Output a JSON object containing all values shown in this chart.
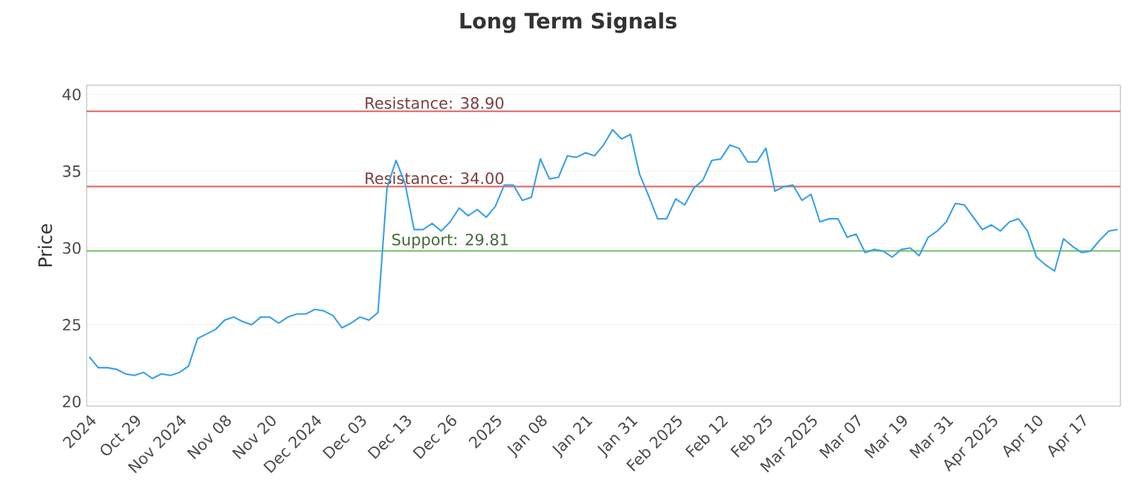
{
  "chart_data": {
    "type": "line",
    "title": "Long Term Signals",
    "ylabel": "Price",
    "categories": [
      "2024",
      null,
      null,
      null,
      null,
      "Oct 29",
      null,
      null,
      null,
      null,
      "Nov 2024",
      null,
      null,
      null,
      null,
      "Nov 08",
      null,
      null,
      null,
      null,
      "Nov 20",
      null,
      null,
      null,
      null,
      "Dec 2024",
      null,
      null,
      null,
      null,
      "Dec 03",
      null,
      null,
      null,
      null,
      "Dec 13",
      null,
      null,
      null,
      null,
      "Dec 26",
      null,
      null,
      null,
      null,
      "2025",
      null,
      null,
      null,
      null,
      "Jan 08",
      null,
      null,
      null,
      null,
      "Jan 21",
      null,
      null,
      null,
      null,
      "Jan 31",
      null,
      null,
      null,
      null,
      "Feb 2025",
      null,
      null,
      null,
      null,
      "Feb 12",
      null,
      null,
      null,
      null,
      "Feb 25",
      null,
      null,
      null,
      null,
      "Mar 2025",
      null,
      null,
      null,
      null,
      "Mar 07",
      null,
      null,
      null,
      null,
      "Mar 19",
      null,
      null,
      null,
      null,
      "Mar 31",
      null,
      null,
      null,
      null,
      "Apr 2025",
      null,
      null,
      null,
      null,
      "Apr 10",
      null,
      null,
      null,
      null,
      "Apr 17",
      null,
      null,
      null,
      null
    ],
    "series": [
      {
        "color": "#3aa0e8",
        "values": [
          22.9,
          22.2,
          22.2,
          22.1,
          21.8,
          21.7,
          21.9,
          21.5,
          21.8,
          21.7,
          21.9,
          22.3,
          24.1,
          24.4,
          24.7,
          25.3,
          25.5,
          25.2,
          25.0,
          25.5,
          25.5,
          25.1,
          25.5,
          25.7,
          25.7,
          26.0,
          25.9,
          25.6,
          24.8,
          25.1,
          25.5,
          25.3,
          25.8,
          33.9,
          35.7,
          34.2,
          31.2,
          31.2,
          31.6,
          31.1,
          31.7,
          32.6,
          32.1,
          32.5,
          32.0,
          32.7,
          34.1,
          34.1,
          33.1,
          33.3,
          35.8,
          34.5,
          34.6,
          36.0,
          35.9,
          36.2,
          36.0,
          36.7,
          37.7,
          37.1,
          37.4,
          34.8,
          33.4,
          31.9,
          31.9,
          33.2,
          32.8,
          33.9,
          34.4,
          35.7,
          35.8,
          36.7,
          36.5,
          35.6,
          35.6,
          36.5,
          33.7,
          34.0,
          34.1,
          33.1,
          33.5,
          31.7,
          31.9,
          31.9,
          30.7,
          30.9,
          29.7,
          29.9,
          29.8,
          29.4,
          29.9,
          30.0,
          29.5,
          30.7,
          31.1,
          31.7,
          32.9,
          32.8,
          32.0,
          31.2,
          31.5,
          31.1,
          31.7,
          31.9,
          31.1,
          29.4,
          28.9,
          28.5,
          30.6,
          30.1,
          29.7,
          29.8,
          30.5,
          31.1,
          31.2
        ]
      }
    ],
    "ylim": [
      19.7,
      40.6
    ],
    "yticks": [
      20,
      25,
      30,
      35,
      40
    ],
    "grid": "y",
    "ref_lines": [
      {
        "axis": "y",
        "value": 38.9,
        "label": "Resistance: 38.90",
        "color": "#e07878"
      },
      {
        "axis": "y",
        "value": 34.0,
        "label": "Resistance: 34.00",
        "color": "#e07878"
      },
      {
        "axis": "y",
        "value": 29.81,
        "label": "Support: 29.81",
        "color": "#7cc46c"
      }
    ]
  }
}
